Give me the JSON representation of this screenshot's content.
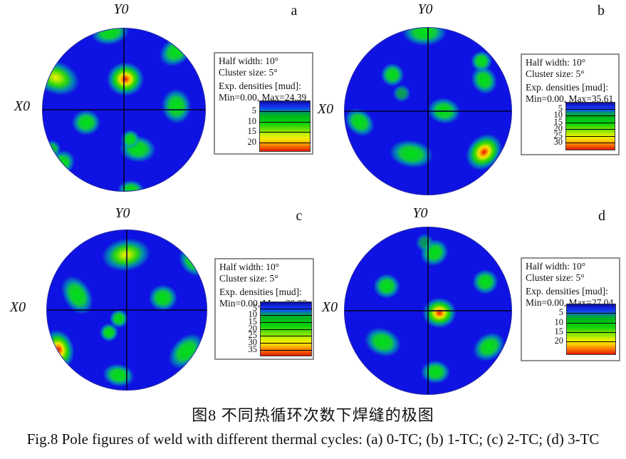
{
  "figure": {
    "caption_zh": "图8  不同热循环次数下焊缝的极图",
    "caption_en": "Fig.8  Pole figures of weld with different thermal cycles: (a) 0-TC; (b) 1-TC; (c) 2-TC; (d) 3-TC"
  },
  "chart_data": {
    "type": "heatmap",
    "subtype": "pole-figure-set",
    "colormap": "jet",
    "axis_top_label": "Y0",
    "axis_left_label": "X0",
    "panels": [
      {
        "label": "a",
        "condition": "0-TC",
        "legend": {
          "half_width": "Half width: 10°",
          "cluster_size": "Cluster size: 5°",
          "densities_title": "Exp. densities [mud]:",
          "densities_range": "Min=0.00, Max=24.39"
        },
        "min": 0.0,
        "max": 24.39,
        "ticks": [
          5,
          10,
          15,
          20
        ],
        "poles": [
          {
            "x": -0.18,
            "y": -0.96,
            "size": 0.4,
            "type": "g",
            "elong": 1.5,
            "rot": -10
          },
          {
            "x": 0.63,
            "y": -0.72,
            "size": 0.42,
            "type": "g",
            "elong": 1.35,
            "rot": -35
          },
          {
            "x": -0.84,
            "y": -0.4,
            "size": 0.52,
            "type": "y",
            "elong": 1.45,
            "rot": 20
          },
          {
            "x": 0.01,
            "y": -0.38,
            "size": 0.52,
            "type": "r",
            "elong": 1.1,
            "rot": 0
          },
          {
            "x": 0.63,
            "y": -0.05,
            "size": 0.46,
            "type": "g",
            "elong": 1.2,
            "rot": 85
          },
          {
            "x": -0.47,
            "y": 0.15,
            "size": 0.4,
            "type": "g",
            "elong": 1.15,
            "rot": 0
          },
          {
            "x": 0.16,
            "y": 0.47,
            "size": 0.42,
            "type": "g",
            "elong": 1.35,
            "rot": 5
          },
          {
            "x": 0.07,
            "y": 0.35,
            "size": 0.3,
            "type": "g",
            "elong": 1.0,
            "rot": 0
          },
          {
            "x": -0.77,
            "y": 0.64,
            "size": 0.38,
            "type": "g",
            "elong": 1.2,
            "rot": -40
          },
          {
            "x": -0.89,
            "y": 0.47,
            "size": 0.28,
            "type": "g",
            "elong": 1.0,
            "rot": 0,
            "opacity": 0.85
          },
          {
            "x": 0.08,
            "y": 0.97,
            "size": 0.3,
            "type": "g",
            "elong": 1.4,
            "rot": 0
          }
        ]
      },
      {
        "label": "b",
        "condition": "1-TC",
        "legend": {
          "half_width": "Half width: 10°",
          "cluster_size": "Cluster size: 5°",
          "densities_title": "Exp. densities [mud]:",
          "densities_range": "Min=0.00, Max=35.61"
        },
        "min": 0.0,
        "max": 35.61,
        "ticks": [
          5,
          10,
          15,
          20,
          25,
          30
        ],
        "poles": [
          {
            "x": -0.05,
            "y": -0.95,
            "size": 0.42,
            "type": "g",
            "elong": 1.6,
            "rot": 0
          },
          {
            "x": -0.43,
            "y": -0.44,
            "size": 0.36,
            "type": "g",
            "elong": 1.0,
            "rot": 0
          },
          {
            "x": -0.32,
            "y": -0.22,
            "size": 0.27,
            "type": "g",
            "elong": 1.0,
            "rot": 0,
            "opacity": 0.7
          },
          {
            "x": 0.63,
            "y": -0.6,
            "size": 0.32,
            "type": "g",
            "elong": 1.0,
            "rot": 0
          },
          {
            "x": 0.66,
            "y": -0.38,
            "size": 0.38,
            "type": "g",
            "elong": 1.15,
            "rot": 60
          },
          {
            "x": 0.18,
            "y": -0.01,
            "size": 0.4,
            "type": "g",
            "elong": 1.25,
            "rot": 10
          },
          {
            "x": -0.82,
            "y": 0.12,
            "size": 0.38,
            "type": "g",
            "elong": 1.3,
            "rot": 40
          },
          {
            "x": -0.21,
            "y": 0.5,
            "size": 0.42,
            "type": "g",
            "elong": 1.6,
            "rot": 8
          },
          {
            "x": 0.66,
            "y": 0.48,
            "size": 0.48,
            "type": "r",
            "elong": 1.25,
            "rot": -45
          }
        ]
      },
      {
        "label": "c",
        "condition": "2-TC",
        "legend": {
          "half_width": "Half width: 10°",
          "cluster_size": "Cluster size: 5°",
          "densities_title": "Exp. densities [mud]:",
          "densities_range": "Min=0.00, Max=39.92"
        },
        "min": 0.0,
        "max": 39.92,
        "ticks": [
          5,
          10,
          15,
          20,
          25,
          30,
          35
        ],
        "poles": [
          {
            "x": -0.02,
            "y": -0.7,
            "size": 0.52,
            "type": "y",
            "elong": 1.5,
            "rot": -8
          },
          {
            "x": 0.83,
            "y": -0.62,
            "size": 0.44,
            "type": "g",
            "elong": 1.25,
            "rot": 45
          },
          {
            "x": -0.63,
            "y": -0.2,
            "size": 0.44,
            "type": "g",
            "elong": 1.5,
            "rot": 60
          },
          {
            "x": 0.44,
            "y": -0.16,
            "size": 0.42,
            "type": "g",
            "elong": 1.1,
            "rot": 0
          },
          {
            "x": -0.11,
            "y": 0.1,
            "size": 0.3,
            "type": "g",
            "elong": 1.0,
            "rot": 0
          },
          {
            "x": -0.23,
            "y": 0.27,
            "size": 0.3,
            "type": "g",
            "elong": 1.0,
            "rot": 0
          },
          {
            "x": -0.86,
            "y": 0.48,
            "size": 0.48,
            "type": "r",
            "elong": 1.3,
            "rot": 75
          },
          {
            "x": 0.73,
            "y": 0.5,
            "size": 0.44,
            "type": "g",
            "elong": 1.5,
            "rot": -45
          },
          {
            "x": -0.11,
            "y": 0.8,
            "size": 0.36,
            "type": "g",
            "elong": 1.4,
            "rot": 10
          }
        ]
      },
      {
        "label": "d",
        "condition": "3-TC",
        "legend": {
          "half_width": "Half width: 10°",
          "cluster_size": "Cluster size: 5°",
          "densities_title": "Exp. densities [mud]:",
          "densities_range": "Min=0.00, Max=27.04"
        },
        "min": 0.0,
        "max": 27.04,
        "ticks": [
          5,
          10,
          15,
          20
        ],
        "poles": [
          {
            "x": 0.07,
            "y": -0.7,
            "size": 0.4,
            "type": "g",
            "elong": 1.1,
            "rot": -30
          },
          {
            "x": -0.05,
            "y": -0.82,
            "size": 0.28,
            "type": "g",
            "elong": 1.0,
            "rot": 0,
            "opacity": 0.65
          },
          {
            "x": -0.5,
            "y": -0.3,
            "size": 0.38,
            "type": "g",
            "elong": 1.05,
            "rot": 0
          },
          {
            "x": 0.67,
            "y": -0.35,
            "size": 0.38,
            "type": "g",
            "elong": 1.05,
            "rot": 0
          },
          {
            "x": 0.13,
            "y": 0.02,
            "size": 0.46,
            "type": "r",
            "elong": 1.1,
            "rot": 0
          },
          {
            "x": -0.55,
            "y": 0.36,
            "size": 0.42,
            "type": "g",
            "elong": 1.35,
            "rot": 20
          },
          {
            "x": 0.72,
            "y": 0.42,
            "size": 0.4,
            "type": "g",
            "elong": 1.3,
            "rot": -35
          },
          {
            "x": 0.08,
            "y": 0.72,
            "size": 0.36,
            "type": "g",
            "elong": 1.25,
            "rot": 0
          }
        ]
      }
    ]
  }
}
